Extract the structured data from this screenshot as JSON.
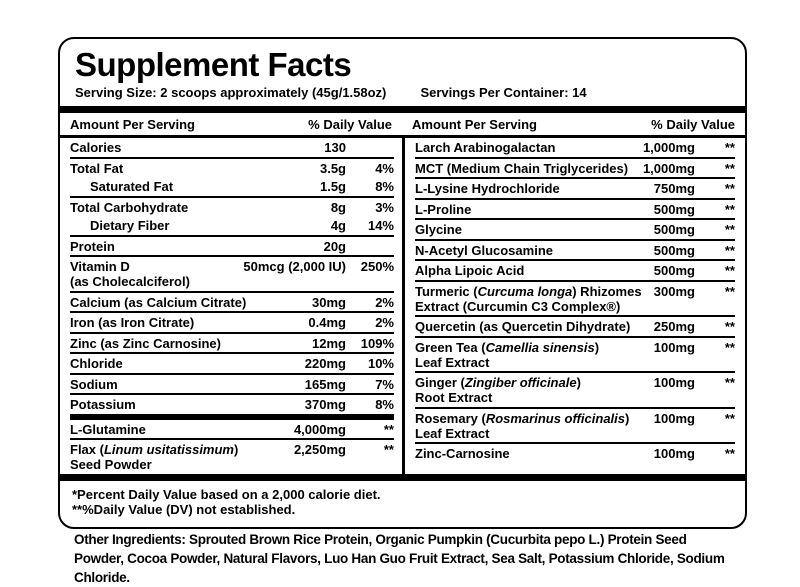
{
  "colors": {
    "text": "#000000",
    "background": "#ffffff",
    "border": "#000000"
  },
  "label": {
    "title": "Supplement Facts",
    "serving_size": "Serving Size: 2 scoops approximately (45g/1.58oz)",
    "servings_per_container": "Servings Per Container: 14",
    "column_header": {
      "amount": "Amount Per Serving",
      "daily_value": "% Daily Value"
    },
    "footnotes": [
      "*Percent Daily Value based on a 2,000 calorie diet.",
      "**%Daily Value (DV) not established."
    ],
    "left_rows": [
      {
        "name": [
          {
            "t": "Calories"
          }
        ],
        "amount": "130",
        "dv": "",
        "sep": "line"
      },
      {
        "name": [
          {
            "t": "Total Fat"
          }
        ],
        "amount": "3.5g",
        "dv": "4%",
        "sep": "none"
      },
      {
        "name": [
          {
            "t": "Saturated Fat"
          }
        ],
        "amount": "1.5g",
        "dv": "8%",
        "indent": true,
        "sep": "line"
      },
      {
        "name": [
          {
            "t": "Total Carbohydrate"
          }
        ],
        "amount": "8g",
        "dv": "3%",
        "sep": "none"
      },
      {
        "name": [
          {
            "t": "Dietary Fiber"
          }
        ],
        "amount": "4g",
        "dv": "14%",
        "indent": true,
        "sep": "line"
      },
      {
        "name": [
          {
            "t": "Protein"
          }
        ],
        "amount": "20g",
        "dv": "",
        "sep": "line"
      },
      {
        "name": [
          {
            "t": "Vitamin D"
          },
          {
            "br": true
          },
          {
            "t": "(as Cholecalciferol)"
          }
        ],
        "amount": "50mcg (2,000 IU)",
        "dv": "250%",
        "sep": "line"
      },
      {
        "name": [
          {
            "t": "Calcium (as Calcium Citrate)"
          }
        ],
        "amount": "30mg",
        "dv": "2%",
        "sep": "line"
      },
      {
        "name": [
          {
            "t": "Iron (as Iron Citrate)"
          }
        ],
        "amount": "0.4mg",
        "dv": "2%",
        "sep": "line"
      },
      {
        "name": [
          {
            "t": "Zinc (as Zinc Carnosine)"
          }
        ],
        "amount": "12mg",
        "dv": "109%",
        "sep": "line"
      },
      {
        "name": [
          {
            "t": "Chloride"
          }
        ],
        "amount": "220mg",
        "dv": "10%",
        "sep": "line"
      },
      {
        "name": [
          {
            "t": "Sodium"
          }
        ],
        "amount": "165mg",
        "dv": "7%",
        "sep": "line"
      },
      {
        "name": [
          {
            "t": "Potassium"
          }
        ],
        "amount": "370mg",
        "dv": "8%",
        "sep": "thick"
      },
      {
        "name": [
          {
            "t": "L-Glutamine"
          }
        ],
        "amount": "4,000mg",
        "dv": "**",
        "sep": "line"
      },
      {
        "name": [
          {
            "t": "Flax ("
          },
          {
            "t": "Linum usitatissimum",
            "i": true
          },
          {
            "t": ")"
          },
          {
            "br": true
          },
          {
            "t": "Seed Powder"
          }
        ],
        "amount": "2,250mg",
        "dv": "**",
        "sep": "none"
      }
    ],
    "right_rows": [
      {
        "name": [
          {
            "t": "Larch Arabinogalactan"
          }
        ],
        "amount": "1,000mg",
        "dv": "**",
        "sep": "line"
      },
      {
        "name": [
          {
            "t": "MCT (Medium Chain Triglycerides)"
          }
        ],
        "amount": "1,000mg",
        "dv": "**",
        "sep": "line"
      },
      {
        "name": [
          {
            "t": "L-Lysine Hydrochloride"
          }
        ],
        "amount": "750mg",
        "dv": "**",
        "sep": "line"
      },
      {
        "name": [
          {
            "t": "L-Proline"
          }
        ],
        "amount": "500mg",
        "dv": "**",
        "sep": "line"
      },
      {
        "name": [
          {
            "t": "Glycine"
          }
        ],
        "amount": "500mg",
        "dv": "**",
        "sep": "line"
      },
      {
        "name": [
          {
            "t": "N-Acetyl Glucosamine"
          }
        ],
        "amount": "500mg",
        "dv": "**",
        "sep": "line"
      },
      {
        "name": [
          {
            "t": "Alpha Lipoic Acid"
          }
        ],
        "amount": "500mg",
        "dv": "**",
        "sep": "line"
      },
      {
        "name": [
          {
            "t": "Turmeric ("
          },
          {
            "t": "Curcuma longa",
            "i": true
          },
          {
            "t": ") Rhizomes"
          },
          {
            "br": true
          },
          {
            "t": "Extract (Curcumin C3 Complex®)"
          }
        ],
        "amount": "300mg",
        "dv": "**",
        "sep": "line"
      },
      {
        "name": [
          {
            "t": "Quercetin (as Quercetin Dihydrate)"
          }
        ],
        "amount": "250mg",
        "dv": "**",
        "sep": "line"
      },
      {
        "name": [
          {
            "t": "Green Tea ("
          },
          {
            "t": "Camellia sinensis",
            "i": true
          },
          {
            "t": ")"
          },
          {
            "br": true
          },
          {
            "t": "Leaf Extract"
          }
        ],
        "amount": "100mg",
        "dv": "**",
        "sep": "line"
      },
      {
        "name": [
          {
            "t": "Ginger ("
          },
          {
            "t": "Zingiber officinale",
            "i": true
          },
          {
            "t": ")"
          },
          {
            "br": true
          },
          {
            "t": "Root Extract"
          }
        ],
        "amount": "100mg",
        "dv": "**",
        "sep": "line"
      },
      {
        "name": [
          {
            "t": "Rosemary ("
          },
          {
            "t": "Rosmarinus officinalis",
            "i": true
          },
          {
            "t": ")"
          },
          {
            "br": true
          },
          {
            "t": "Leaf Extract"
          }
        ],
        "amount": "100mg",
        "dv": "**",
        "sep": "line"
      },
      {
        "name": [
          {
            "t": "Zinc-Carnosine"
          }
        ],
        "amount": "100mg",
        "dv": "**",
        "sep": "none"
      }
    ]
  },
  "other_ingredients": "Other Ingredients: Sprouted Brown Rice Protein, Organic Pumpkin (Cucurbita pepo L.) Protein Seed Powder, Cocoa Powder, Natural Flavors, Luo Han Guo Fruit Extract, Sea Salt, Potassium Chloride, Sodium Chloride."
}
